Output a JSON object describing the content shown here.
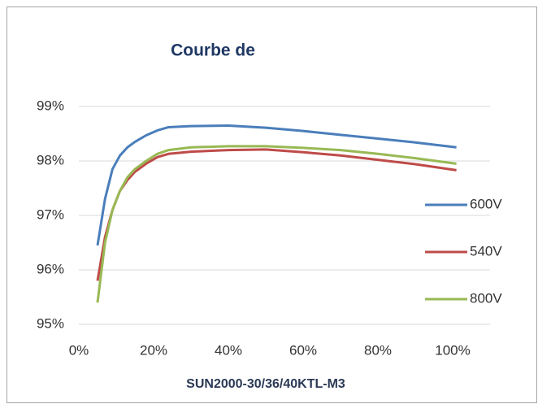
{
  "chart_data": {
    "type": "line",
    "title": "Courbe de",
    "x_label": "SUN2000-30/36/40KTL-M3",
    "x": [
      5,
      7,
      9,
      11,
      13,
      15,
      18,
      21,
      24,
      30,
      40,
      50,
      60,
      70,
      80,
      90,
      101
    ],
    "series": [
      {
        "name": "600V",
        "color": "#4a7ebb",
        "values": [
          96.45,
          97.3,
          97.85,
          98.1,
          98.25,
          98.35,
          98.47,
          98.56,
          98.62,
          98.64,
          98.65,
          98.61,
          98.55,
          98.48,
          98.41,
          98.34,
          98.25
        ]
      },
      {
        "name": "540V",
        "color": "#be4b48",
        "values": [
          95.8,
          96.6,
          97.1,
          97.45,
          97.65,
          97.8,
          97.95,
          98.07,
          98.13,
          98.17,
          98.2,
          98.21,
          98.16,
          98.1,
          98.02,
          97.94,
          97.83
        ]
      },
      {
        "name": "800V",
        "color": "#98b954",
        "values": [
          95.4,
          96.5,
          97.1,
          97.45,
          97.7,
          97.85,
          98.0,
          98.13,
          98.2,
          98.25,
          98.27,
          98.27,
          98.24,
          98.2,
          98.13,
          98.05,
          97.95
        ]
      }
    ],
    "xlim": [
      0,
      110
    ],
    "xticks": [
      {
        "value": 0,
        "label": "0%"
      },
      {
        "value": 20,
        "label": "20%"
      },
      {
        "value": 40,
        "label": "40%"
      },
      {
        "value": 60,
        "label": "60%"
      },
      {
        "value": 80,
        "label": "80%"
      },
      {
        "value": 100,
        "label": "100%"
      }
    ],
    "ylim": [
      95,
      99
    ],
    "yticks": [
      {
        "value": 95,
        "label": "95%"
      },
      {
        "value": 96,
        "label": "96%"
      },
      {
        "value": 97,
        "label": "97%"
      },
      {
        "value": 98,
        "label": "98%"
      },
      {
        "value": 99,
        "label": "99%"
      }
    ],
    "grid": true,
    "legend": "right"
  }
}
